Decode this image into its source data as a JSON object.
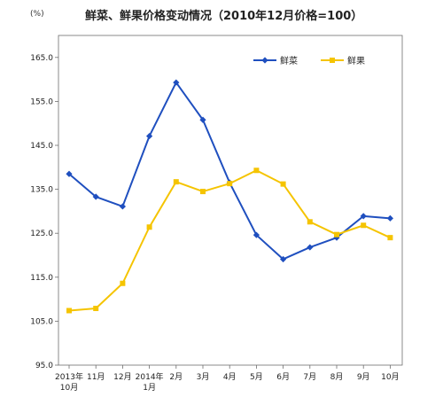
{
  "chart_data": {
    "type": "line",
    "title": "鲜菜、鲜果价格变动情况（2010年12月价格=100）",
    "unit": "(%)",
    "categories": [
      [
        "2013年",
        "10月"
      ],
      [
        "11月"
      ],
      [
        "12月"
      ],
      [
        "2014年",
        "1月"
      ],
      [
        "2月"
      ],
      [
        "3月"
      ],
      [
        "4月"
      ],
      [
        "5月"
      ],
      [
        "6月"
      ],
      [
        "7月"
      ],
      [
        "8月"
      ],
      [
        "9月"
      ],
      [
        "10月"
      ]
    ],
    "yticks": [
      "95.0",
      "105.0",
      "115.0",
      "125.0",
      "135.0",
      "145.0",
      "155.0",
      "165.0"
    ],
    "ylim": [
      95,
      170
    ],
    "grid": false,
    "legend_position": "top-right",
    "series": [
      {
        "name": "鲜菜",
        "color": "#1f4fbf",
        "marker": "diamond",
        "values": [
          138.5,
          133.3,
          131.1,
          147.1,
          159.3,
          150.8,
          136.5,
          124.6,
          119.1,
          121.8,
          124.0,
          128.9,
          128.4
        ]
      },
      {
        "name": "鲜果",
        "color": "#f5c400",
        "marker": "square",
        "values": [
          107.4,
          107.9,
          113.6,
          126.4,
          136.7,
          134.5,
          136.3,
          139.3,
          136.2,
          127.6,
          124.7,
          126.8,
          124.0
        ]
      }
    ]
  }
}
